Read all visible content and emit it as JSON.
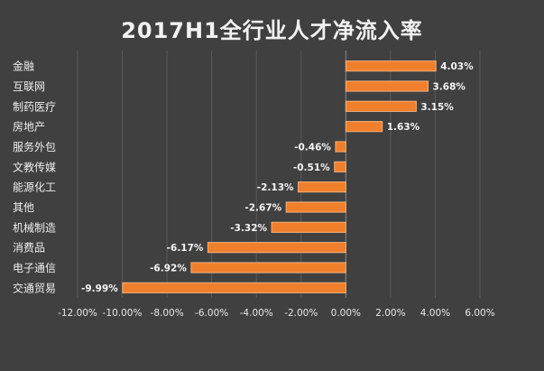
{
  "chart_data": {
    "type": "bar",
    "orientation": "horizontal",
    "title": "2017H1全行业人才净流入率",
    "categories": [
      "金融",
      "互联网",
      "制药医疗",
      "房地产",
      "服务外包",
      "文教传媒",
      "能源化工",
      "其他",
      "机械制造",
      "消费品",
      "电子通信",
      "交通贸易"
    ],
    "values": [
      4.03,
      3.68,
      3.15,
      1.63,
      -0.46,
      -0.51,
      -2.13,
      -2.67,
      -3.32,
      -6.17,
      -6.92,
      -9.99
    ],
    "data_labels": [
      "4.03%",
      "3.68%",
      "3.15%",
      "1.63%",
      "-0.46%",
      "-0.51%",
      "-2.13%",
      "-2.67%",
      "-3.32%",
      "-6.17%",
      "-6.92%",
      "-9.99%"
    ],
    "x_ticks": [
      -12,
      -10,
      -8,
      -6,
      -4,
      -2,
      0,
      2,
      4,
      6
    ],
    "x_tick_labels": [
      "-12.00%",
      "-10.00%",
      "-8.00%",
      "-6.00%",
      "-4.00%",
      "-2.00%",
      "0.00%",
      "2.00%",
      "4.00%",
      "6.00%"
    ],
    "xlim": [
      -12,
      6
    ],
    "xlabel": "",
    "ylabel": "",
    "grid": true,
    "legend": "none",
    "colors": {
      "background": "#404040",
      "bar": "#f07f2c",
      "text": "#f2f2f2"
    }
  }
}
